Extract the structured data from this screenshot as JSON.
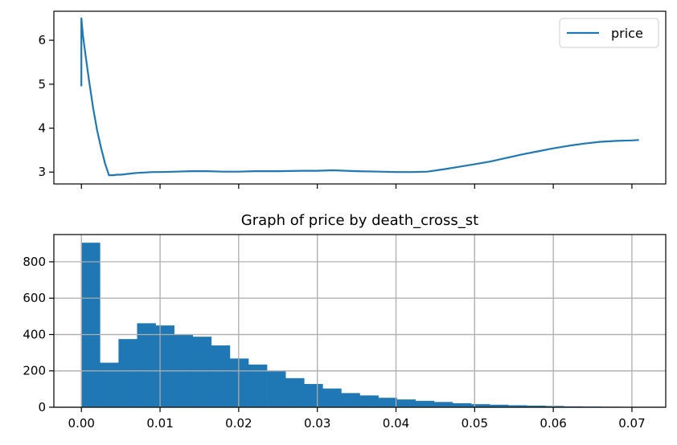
{
  "colors": {
    "series": "#1f77b4",
    "grid": "#b0b0b0",
    "axis": "#000000"
  },
  "chart_data": [
    {
      "type": "line",
      "title": "",
      "xlabel": "",
      "ylabel": "",
      "xlim": [
        -0.0035,
        0.0743
      ],
      "ylim": [
        2.73,
        6.66
      ],
      "x_ticks": [
        0.0,
        0.01,
        0.02,
        0.03,
        0.04,
        0.05,
        0.06,
        0.07
      ],
      "y_ticks": [
        3,
        4,
        5,
        6
      ],
      "y_tick_labels": [
        "3",
        "4",
        "5",
        "6"
      ],
      "grid": false,
      "legend_position": "upper-right",
      "series": [
        {
          "name": "price",
          "x": [
            0.0,
            0.0,
            0.0002,
            0.0005,
            0.001,
            0.0015,
            0.002,
            0.0025,
            0.003,
            0.0035,
            0.0041,
            0.0045,
            0.005,
            0.006,
            0.007,
            0.008,
            0.009,
            0.01,
            0.012,
            0.014,
            0.016,
            0.018,
            0.02,
            0.022,
            0.025,
            0.028,
            0.03,
            0.032,
            0.035,
            0.038,
            0.04,
            0.042,
            0.044,
            0.046,
            0.048,
            0.05,
            0.052,
            0.054,
            0.056,
            0.058,
            0.06,
            0.062,
            0.064,
            0.066,
            0.068,
            0.07,
            0.0709
          ],
          "y": [
            4.95,
            6.5,
            6.1,
            5.7,
            5.05,
            4.45,
            3.95,
            3.55,
            3.2,
            2.93,
            2.93,
            2.94,
            2.94,
            2.96,
            2.98,
            2.99,
            3.0,
            3.0,
            3.01,
            3.02,
            3.02,
            3.01,
            3.01,
            3.02,
            3.02,
            3.03,
            3.03,
            3.04,
            3.02,
            3.01,
            3.0,
            3.0,
            3.01,
            3.06,
            3.12,
            3.18,
            3.24,
            3.32,
            3.4,
            3.47,
            3.54,
            3.6,
            3.65,
            3.69,
            3.71,
            3.72,
            3.73
          ]
        }
      ]
    },
    {
      "type": "bar",
      "title": "Graph of price by death_cross_st",
      "xlabel": "",
      "ylabel": "",
      "xlim": [
        -0.0035,
        0.0743
      ],
      "ylim": [
        0,
        950
      ],
      "x_ticks": [
        0.0,
        0.01,
        0.02,
        0.03,
        0.04,
        0.05,
        0.06,
        0.07
      ],
      "x_tick_labels": [
        "0.00",
        "0.01",
        "0.02",
        "0.03",
        "0.04",
        "0.05",
        "0.06",
        "0.07"
      ],
      "y_ticks": [
        0,
        200,
        400,
        600,
        800
      ],
      "y_tick_labels": [
        "0",
        "200",
        "400",
        "600",
        "800"
      ],
      "grid": true,
      "bin_start": 0.0,
      "bin_width": 0.00236,
      "values": [
        905,
        245,
        375,
        462,
        450,
        402,
        388,
        340,
        268,
        235,
        198,
        160,
        128,
        103,
        78,
        65,
        52,
        43,
        35,
        29,
        22,
        17,
        14,
        11,
        9,
        7,
        5,
        4,
        3,
        2
      ]
    }
  ]
}
